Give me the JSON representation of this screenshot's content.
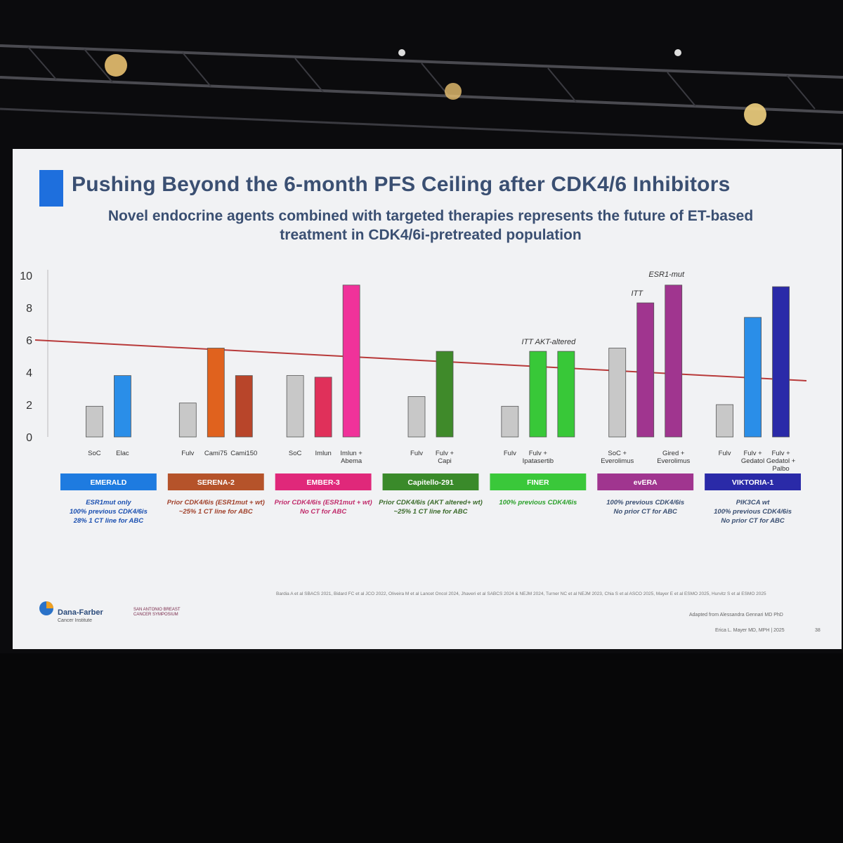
{
  "slide": {
    "title": "Pushing Beyond the 6-month PFS Ceiling after CDK4/6 Inhibitors",
    "subtitle": "Novel endocrine agents combined with targeted therapies represents the future of ET-based treatment in CDK4/6i-pretreated population",
    "references": "Bardia A et al SBACS 2021, Bidard FC et al JCO 2022, Oliveira M et al Lancet Oncol 2024, Jhaveri et al SABCS 2024 & NEJM 2024, Turner NC et al NEJM 2023, Chia S et al ASCO 2025, Mayer E et al ESMO 2025, Hurvitz S et al ESMO 2025",
    "adapted": "Adapted from Alessandra Gennari MD PhD",
    "author": "Erica L. Mayer MD, MPH | 2025",
    "page": "38",
    "logo_dfci": "Dana-Farber",
    "logo_dfci_sub": "Cancer Institute",
    "logo_sabcs": "SAN ANTONIO BREAST CANCER SYMPOSIUM"
  },
  "chart_data": {
    "type": "bar",
    "ylim": [
      0,
      10
    ],
    "yticks": [
      0,
      2,
      4,
      6,
      8,
      10
    ],
    "ceiling": 6,
    "annotations": [
      "ITT  AKT-altered",
      "ITT",
      "ESR1-mut"
    ],
    "trials": [
      {
        "name": "EMERALD",
        "color": "#1e7be0",
        "bars": [
          {
            "label": "SoC",
            "value": 1.9,
            "color": "#c8c8c8"
          },
          {
            "label": "Elac",
            "value": 3.8,
            "color": "#2a8ee8"
          }
        ],
        "notes": [
          "ESR1mut only",
          "100% previous CDK4/6is",
          "28% 1 CT line for ABC"
        ],
        "note_color": "#1a4fb0"
      },
      {
        "name": "SERENA-2",
        "color": "#b5532a",
        "bars": [
          {
            "label": "Fulv",
            "value": 2.1,
            "color": "#c8c8c8"
          },
          {
            "label": "Cami75",
            "value": 5.5,
            "color": "#e0621e"
          },
          {
            "label": "Cami150",
            "value": 3.8,
            "color": "#b8452a"
          }
        ],
        "notes": [
          "Prior CDK4/6is (ESR1mut + wt)",
          "~25% 1 CT line for ABC"
        ],
        "note_color": "#a0402a"
      },
      {
        "name": "EMBER-3",
        "color": "#e0287a",
        "bars": [
          {
            "label": "SoC",
            "value": 3.8,
            "color": "#c8c8c8"
          },
          {
            "label": "Imlun",
            "value": 3.7,
            "color": "#e0305a"
          },
          {
            "label": "Imlun + Abema",
            "value": 9.4,
            "color": "#f0329a"
          }
        ],
        "notes": [
          "Prior CDK4/6is (ESR1mut + wt)",
          "No CT for ABC"
        ],
        "note_color": "#c02a6a"
      },
      {
        "name": "Capitello-291",
        "color": "#3a8a2a",
        "bars": [
          {
            "label": "Fulv",
            "value": 2.5,
            "color": "#c8c8c8"
          },
          {
            "label": "Fulv + Capi",
            "value": 5.3,
            "color": "#3f8a2a"
          }
        ],
        "notes": [
          "Prior CDK4/6is (AKT altered+ wt)",
          "~25% 1 CT line for ABC"
        ],
        "note_color": "#3a6a2a"
      },
      {
        "name": "FINER",
        "color": "#3ac83a",
        "bars": [
          {
            "label": "Fulv",
            "value": 1.9,
            "color": "#c8c8c8"
          },
          {
            "label": "Fulv + Ipatasertib",
            "value": 5.3,
            "color": "#38c838"
          },
          {
            "label": "",
            "value": 5.3,
            "color": "#38c838"
          }
        ],
        "notes": [
          "100% previous CDK4/6is"
        ],
        "note_color": "#2aa02a"
      },
      {
        "name": "evERA",
        "color": "#a0358f",
        "bars": [
          {
            "label": "SoC + Everolimus",
            "value": 5.5,
            "color": "#c8c8c8"
          },
          {
            "label": "",
            "value": 8.3,
            "color": "#a0358f"
          },
          {
            "label": "Gired + Everolimus",
            "value": 9.4,
            "color": "#a0358f"
          }
        ],
        "notes": [
          "100% previous CDK4/6is",
          "No prior CT for ABC"
        ],
        "note_color": "#3a4f72"
      },
      {
        "name": "VIKTORIA-1",
        "color": "#2a2aa8",
        "bars": [
          {
            "label": "Fulv",
            "value": 2.0,
            "color": "#c8c8c8"
          },
          {
            "label": "Fulv + Gedatol",
            "value": 7.4,
            "color": "#2a8ee8"
          },
          {
            "label": "Fulv + Gedatol + Palbo",
            "value": 9.3,
            "color": "#2a2aa8"
          }
        ],
        "notes": [
          "PIK3CA wt",
          "100% previous CDK4/6is",
          "No prior CT for ABC"
        ],
        "note_color": "#3a4f72"
      }
    ]
  }
}
